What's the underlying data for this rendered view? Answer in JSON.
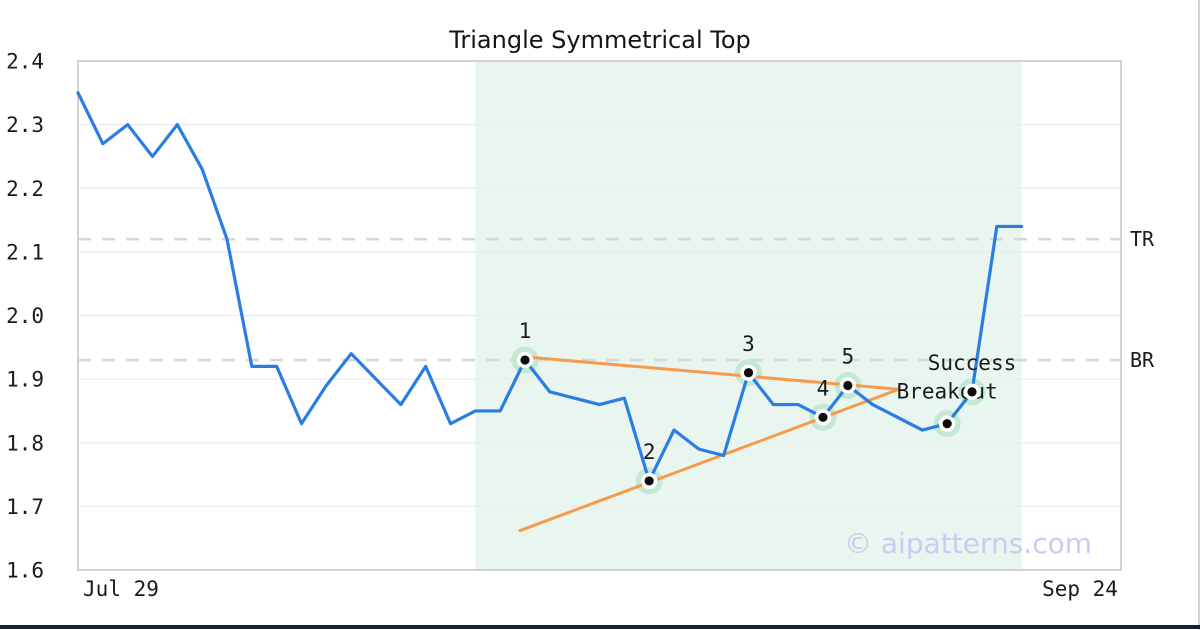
{
  "page": {
    "watermark": "© aipatterns.com",
    "bottom_bar_color": "#14213d"
  },
  "chart_data": {
    "type": "line",
    "title": "Triangle Symmetrical Top",
    "x_axis": {
      "domain": [
        0,
        42
      ],
      "ticks": [
        {
          "label": "Jul 29",
          "index": 1.73
        },
        {
          "label": "Sep 24",
          "index": 40.35
        }
      ]
    },
    "y_axis": {
      "domain": [
        1.6,
        2.4
      ],
      "ticks": [
        {
          "label": "2.4",
          "value": 2.4
        },
        {
          "label": "2.3",
          "value": 2.3
        },
        {
          "label": "2.2",
          "value": 2.2
        },
        {
          "label": "2.1",
          "value": 2.1
        },
        {
          "label": "2.0",
          "value": 2.0
        },
        {
          "label": "1.9",
          "value": 1.9
        },
        {
          "label": "1.8",
          "value": 1.8
        },
        {
          "label": "1.7",
          "value": 1.7
        },
        {
          "label": "1.6",
          "value": 1.6
        }
      ],
      "grid_values": [
        2.3,
        2.2,
        2.1,
        2.0,
        1.9,
        1.8,
        1.7
      ]
    },
    "series": {
      "name": "price",
      "color": "#2a7de2",
      "values": [
        2.35,
        2.27,
        2.3,
        2.25,
        2.3,
        2.23,
        2.12,
        1.92,
        1.92,
        1.83,
        1.89,
        1.94,
        1.9,
        1.86,
        1.92,
        1.83,
        1.85,
        1.85,
        1.93,
        1.88,
        1.87,
        1.86,
        1.87,
        1.74,
        1.82,
        1.79,
        1.78,
        1.91,
        1.86,
        1.86,
        1.84,
        1.89,
        1.86,
        1.84,
        1.82,
        1.83,
        1.88,
        2.14,
        2.14
      ]
    },
    "pattern_window": {
      "from_index": 16,
      "to_index": 38,
      "fill": "#e9f5ef"
    },
    "levels": [
      {
        "label": "TR",
        "value": 2.12
      },
      {
        "label": "BR",
        "value": 1.93
      }
    ],
    "level_style": {
      "color": "#d8d8d8",
      "dash": "13 11"
    },
    "trendlines": [
      {
        "name": "upper",
        "color": "#f79a4b",
        "from": {
          "index": 18.0,
          "value": 1.935
        },
        "to": {
          "index": 33.05,
          "value": 1.884
        }
      },
      {
        "name": "lower",
        "color": "#f79a4b",
        "from": {
          "index": 17.8,
          "value": 1.662
        },
        "to": {
          "index": 33.05,
          "value": 1.884
        }
      }
    ],
    "pattern_points": [
      {
        "label": "1",
        "index": 18,
        "value": 1.93,
        "label_dy": -22
      },
      {
        "label": "2",
        "index": 23,
        "value": 1.74,
        "label_dy": -22
      },
      {
        "label": "3",
        "index": 27,
        "value": 1.91,
        "label_dy": -22
      },
      {
        "label": "4",
        "index": 30,
        "value": 1.84,
        "label_dy": -22
      },
      {
        "label": "5",
        "index": 31,
        "value": 1.89,
        "label_dy": -22
      },
      {
        "label": "Breakout",
        "index": 35,
        "value": 1.83,
        "label_dy": -25
      },
      {
        "label": "Success",
        "index": 36,
        "value": 1.88,
        "label_dy": -22
      }
    ],
    "marker_style": {
      "halo_color": "#c3e8d3",
      "ring_color": "#ffffff",
      "dot_color": "#0c0c0c"
    },
    "grid_color": "#ececec",
    "spine_color": "#d2d2d2",
    "legend": null
  }
}
